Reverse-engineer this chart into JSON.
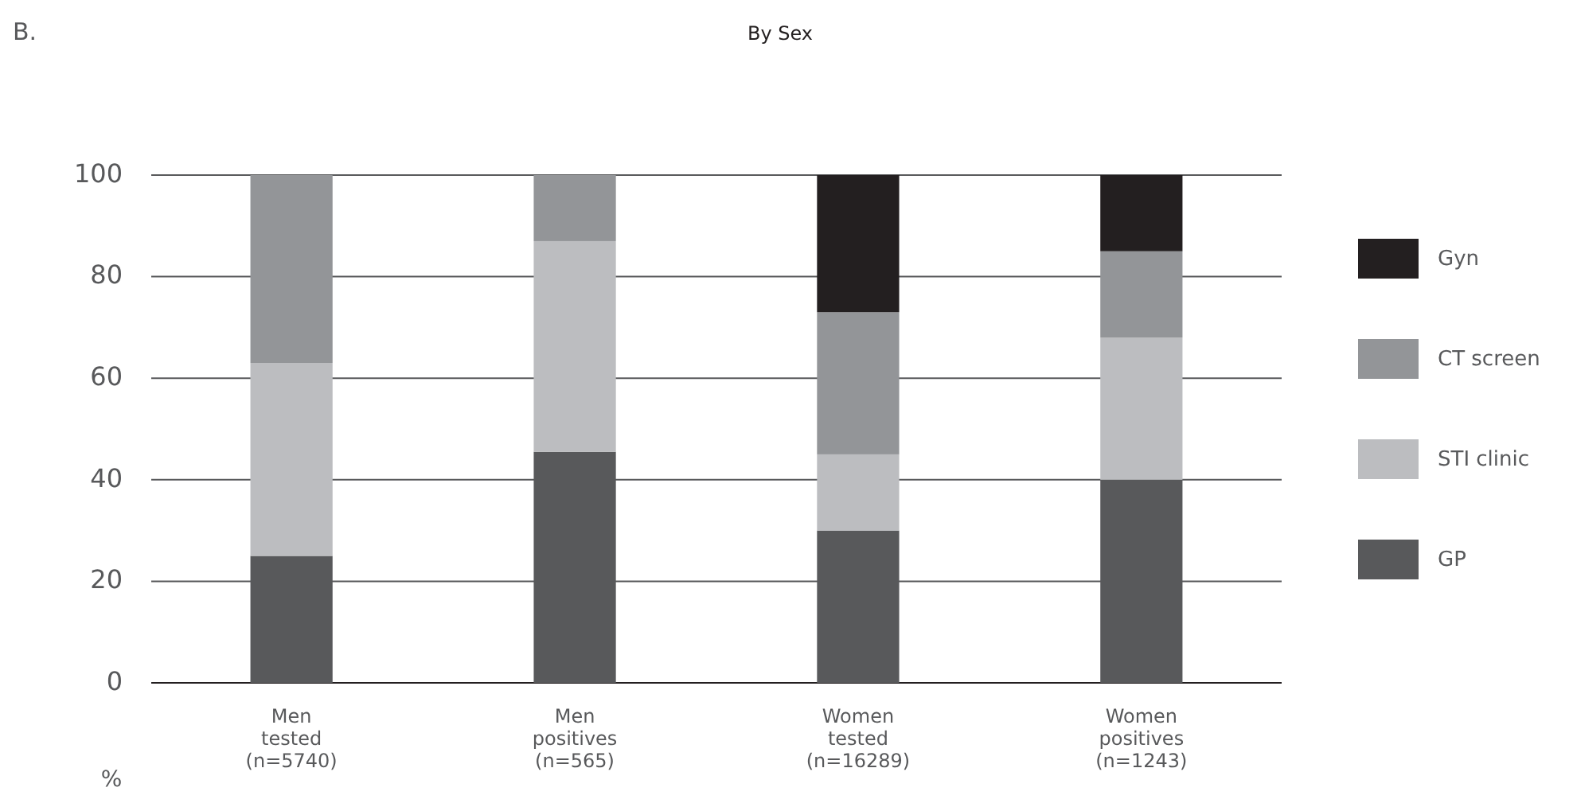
{
  "chart_data": {
    "type": "bar",
    "title": "By Sex",
    "ylabel": "%",
    "annotations": [
      "B."
    ],
    "stacked": true,
    "categories": [
      "Men\ntested\n(n=5740)",
      "Men\npositives\n(n=565)",
      "Women\ntested\n(n=16289)",
      "Women\npositives\n(n=1243)"
    ],
    "series": [
      {
        "name": "GP",
        "color": "#58595b",
        "values": [
          25,
          45.5,
          30,
          40
        ]
      },
      {
        "name": "STI clinic",
        "color": "#bcbdc0",
        "values": [
          38,
          41.5,
          15,
          28
        ]
      },
      {
        "name": "CT screen",
        "color": "#939598",
        "values": [
          37,
          13,
          28,
          17
        ]
      },
      {
        "name": "Gyn",
        "color": "#231f20",
        "values": [
          null,
          null,
          27,
          15
        ]
      }
    ],
    "ylim": [
      0,
      100
    ],
    "yticks": [
      0,
      20,
      40,
      60,
      80,
      100
    ],
    "grid": "y",
    "legend": "right"
  }
}
